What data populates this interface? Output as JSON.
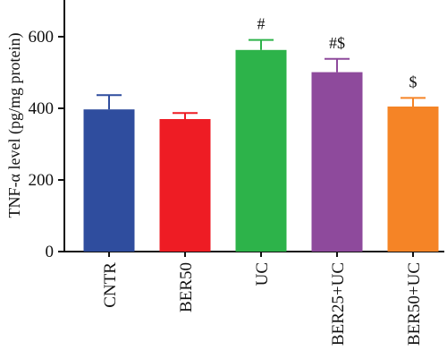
{
  "chart_data": {
    "type": "bar",
    "categories": [
      "CNTR",
      "BER50",
      "UC",
      "BER25+UC",
      "BER50+UC"
    ],
    "values": [
      397,
      370,
      563,
      501,
      405
    ],
    "errors": [
      40,
      17,
      28,
      37,
      24
    ],
    "annotations": [
      "",
      "",
      "#",
      "#$",
      "$"
    ],
    "colors": [
      "#2f4d9e",
      "#ee1c24",
      "#2db34a",
      "#8e4a9c",
      "#f58426"
    ],
    "ylabel": "TNF-α level (pg/mg protein)",
    "ylim": [
      0,
      700
    ],
    "yticks": [
      0,
      200,
      400,
      600
    ],
    "grid": false
  }
}
